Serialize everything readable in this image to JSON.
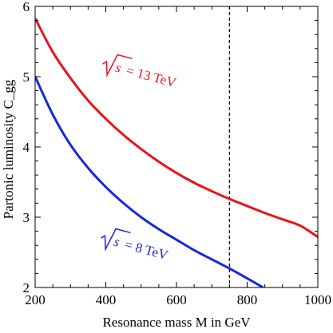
{
  "chart_data": {
    "type": "line",
    "title": "",
    "xlabel": "Resonance mass M in GeV",
    "ylabel": "Partonic luminosity C_gg",
    "xlim": [
      200,
      1000
    ],
    "ylim": [
      2,
      6
    ],
    "x_ticks": [
      200,
      400,
      600,
      800,
      1000
    ],
    "y_ticks": [
      2,
      3,
      4,
      5,
      6
    ],
    "grid": false,
    "series": [
      {
        "name": "√s = 13 TeV",
        "color": "#e8131c",
        "x": [
          200,
          250,
          300,
          350,
          400,
          450,
          500,
          550,
          600,
          650,
          700,
          750,
          800,
          850,
          900,
          950,
          1000
        ],
        "y": [
          5.83,
          5.35,
          4.98,
          4.66,
          4.4,
          4.17,
          3.97,
          3.79,
          3.63,
          3.49,
          3.37,
          3.26,
          3.16,
          3.06,
          2.97,
          2.88,
          2.72
        ]
      },
      {
        "name": "√s = 8 TeV",
        "color": "#1726e0",
        "x": [
          200,
          250,
          300,
          350,
          400,
          450,
          500,
          550,
          600,
          650,
          700,
          750,
          800,
          845
        ],
        "y": [
          5.0,
          4.46,
          4.03,
          3.7,
          3.43,
          3.2,
          3.0,
          2.83,
          2.68,
          2.53,
          2.4,
          2.27,
          2.13,
          2.0
        ]
      }
    ],
    "annotations": [
      {
        "text": "√s = 13 TeV",
        "sqrt_symbol": "√",
        "radicand": "s",
        "value": "= 13 TeV",
        "color": "#e8131c"
      },
      {
        "text": "√s = 8 TeV",
        "sqrt_symbol": "√",
        "radicand": "s",
        "value": "= 8 TeV",
        "color": "#1726e0"
      }
    ],
    "reference_line": {
      "orientation": "vertical",
      "x": 750,
      "style": "dashed",
      "color": "#000000"
    }
  }
}
